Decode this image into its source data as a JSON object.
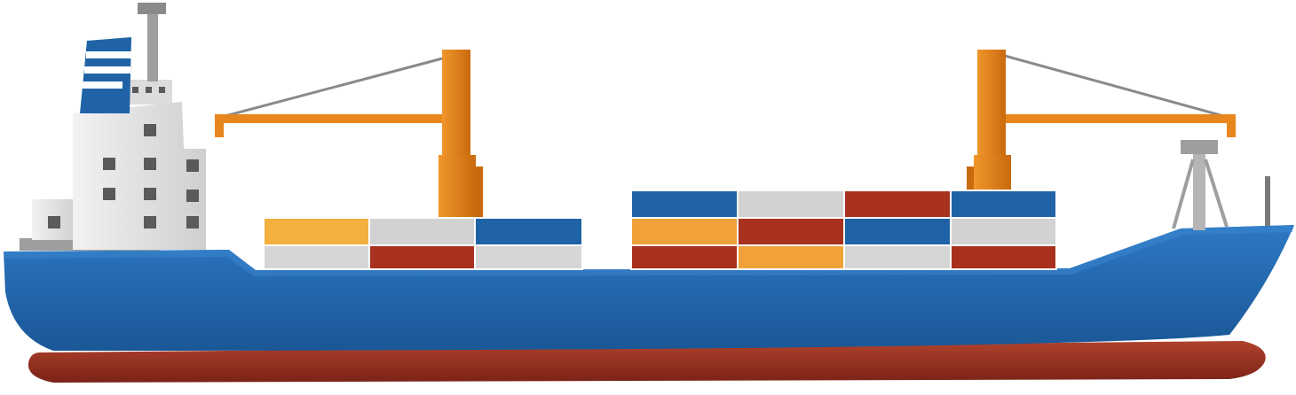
{
  "illustration": {
    "subject": "container-ship-icon",
    "colors": {
      "hull_blue": "#1f63a6",
      "hull_blue_light": "#2d78c4",
      "keel_red": "#8e2a1c",
      "keel_red_light": "#b0422c",
      "superstructure_grey": "#e2e2e2",
      "superstructure_shade": "#c9c9c9",
      "window_dark": "#5a5a5a",
      "crane_orange": "#e8861e",
      "crane_orange_dark": "#c96a0e",
      "rigging_grey": "#8a8a8a",
      "funnel_blue": "#1f63a6"
    },
    "container_colors": [
      "yellow",
      "grey",
      "blue",
      "red",
      "orange"
    ]
  }
}
